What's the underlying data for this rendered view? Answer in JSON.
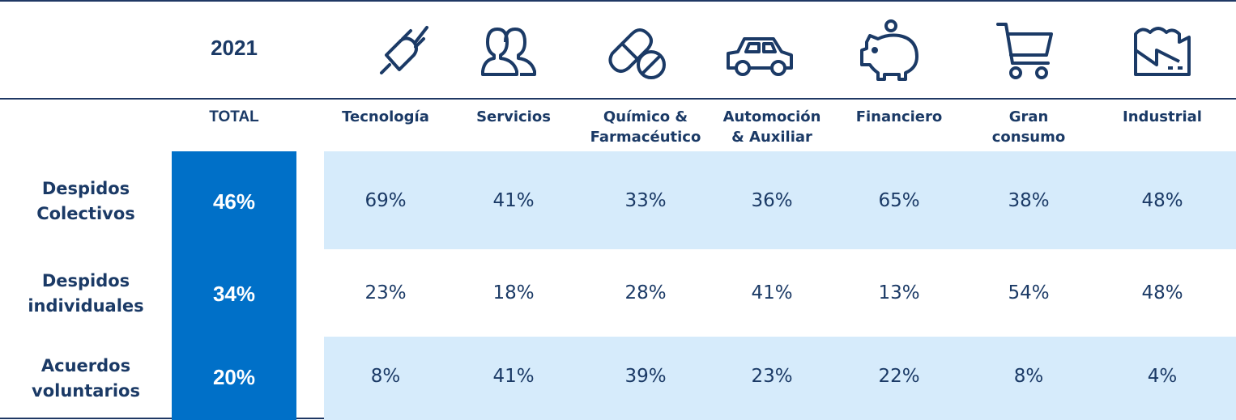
{
  "year": "2021",
  "colors": {
    "accent": "#0070c8",
    "band": "#d6ebfb",
    "text": "#1b3a66",
    "rule": "#1f3864"
  },
  "columns": [
    {
      "label": "TOTAL",
      "icon": ""
    },
    {
      "label": "Tecnología",
      "icon": "plug-icon"
    },
    {
      "label": "Servicios",
      "icon": "people-icon"
    },
    {
      "label": "Químico & Farmacéutico",
      "icon": "pill-icon"
    },
    {
      "label": "Automoción & Auxiliar",
      "icon": "car-icon"
    },
    {
      "label": "Financiero",
      "icon": "piggy-bank-icon"
    },
    {
      "label": "Gran consumo",
      "icon": "shopping-cart-icon"
    },
    {
      "label": "Industrial",
      "icon": "factory-icon"
    }
  ],
  "rows": [
    {
      "label": "Despidos Colectivos",
      "total": "46%",
      "values": [
        "69%",
        "41%",
        "33%",
        "36%",
        "65%",
        "38%",
        "48%"
      ]
    },
    {
      "label": "Despidos individuales",
      "total": "34%",
      "values": [
        "23%",
        "18%",
        "28%",
        "41%",
        "13%",
        "54%",
        "48%"
      ]
    },
    {
      "label": "Acuerdos voluntarios",
      "total": "20%",
      "values": [
        "8%",
        "41%",
        "39%",
        "23%",
        "22%",
        "8%",
        "4%"
      ]
    }
  ],
  "chart_data": {
    "type": "table",
    "title": "2021",
    "columns": [
      "TOTAL",
      "Tecnología",
      "Servicios",
      "Químico & Farmacéutico",
      "Automoción & Auxiliar",
      "Financiero",
      "Gran consumo",
      "Industrial"
    ],
    "rows": [
      "Despidos Colectivos",
      "Despidos individuales",
      "Acuerdos voluntarios"
    ],
    "values": [
      [
        46,
        69,
        41,
        33,
        36,
        65,
        38,
        48
      ],
      [
        34,
        23,
        18,
        28,
        41,
        13,
        54,
        48
      ],
      [
        20,
        8,
        41,
        39,
        23,
        22,
        8,
        4
      ]
    ],
    "unit": "%"
  }
}
